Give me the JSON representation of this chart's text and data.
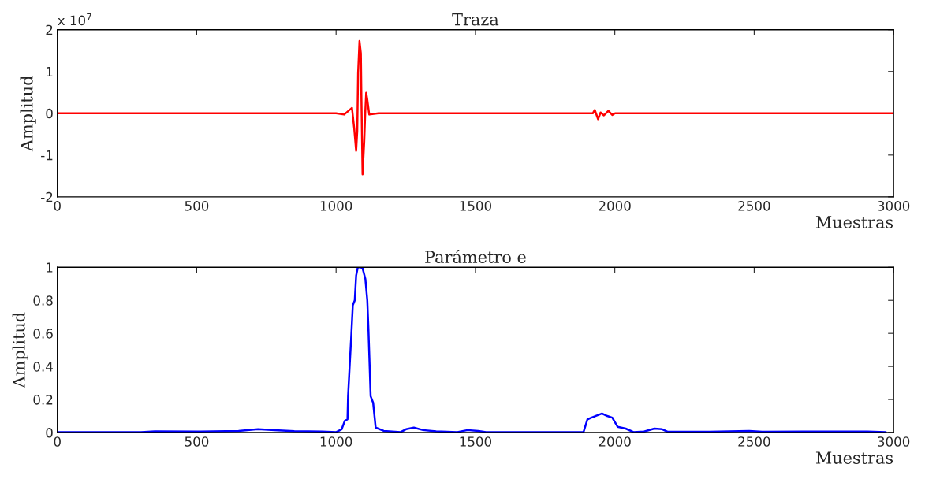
{
  "chart_data": [
    {
      "type": "line",
      "title": "Traza",
      "xlabel": "Muestras",
      "ylabel": "Amplitud",
      "annotations": [
        "x 10$^{7}$"
      ],
      "xlim": [
        0,
        3000
      ],
      "ylim": [
        -2,
        2
      ],
      "xticks": [
        0,
        500,
        1000,
        1500,
        2000,
        2500,
        3000
      ],
      "yticks": [
        -2,
        -1,
        0,
        1,
        2
      ],
      "series": [
        {
          "color": "#ff0000",
          "x": [
            0,
            500,
            1000,
            1029,
            1057,
            1065,
            1072,
            1076,
            1079,
            1084,
            1089,
            1091,
            1095,
            1101,
            1105,
            1108,
            1112,
            1119,
            1152,
            1500,
            1921,
            1928,
            1940,
            1949,
            1961,
            1977,
            1991,
            2001,
            2500,
            3000
          ],
          "values": [
            0,
            0,
            0,
            -0.03,
            0.13,
            -0.36,
            -0.9,
            -0.42,
            0.96,
            1.73,
            1.43,
            0.33,
            -1.46,
            -0.67,
            0.08,
            0.49,
            0.33,
            -0.03,
            0,
            0,
            0,
            0.08,
            -0.14,
            0.02,
            -0.05,
            0.06,
            -0.04,
            0,
            0,
            0
          ]
        }
      ]
    },
    {
      "type": "line",
      "title": "Parámetro e",
      "xlabel": "Muestras",
      "ylabel": "Amplitud",
      "xlim": [
        0,
        3000
      ],
      "ylim": [
        0,
        1
      ],
      "xticks": [
        0,
        500,
        1000,
        1500,
        2000,
        2500,
        3000
      ],
      "yticks": [
        0,
        0.2,
        0.4,
        0.6,
        0.8,
        1
      ],
      "series": [
        {
          "color": "#0000ff",
          "x": [
            0,
            300,
            350,
            500,
            650,
            720,
            780,
            850,
            950,
            1001,
            1020,
            1031,
            1041,
            1043,
            1048,
            1055,
            1060,
            1067,
            1072,
            1078,
            1088,
            1095,
            1105,
            1112,
            1116,
            1124,
            1133,
            1142,
            1171,
            1232,
            1251,
            1279,
            1312,
            1359,
            1435,
            1472,
            1510,
            1538,
            1888,
            1902,
            1916,
            1954,
            1973,
            1991,
            2010,
            2039,
            2067,
            2105,
            2142,
            2170,
            2189,
            2340,
            2482,
            2529,
            2719,
            2906,
            2972
          ],
          "values": [
            0.003,
            0.003,
            0.007,
            0.006,
            0.01,
            0.02,
            0.015,
            0.008,
            0.006,
            0.003,
            0.02,
            0.07,
            0.08,
            0.22,
            0.38,
            0.6,
            0.77,
            0.8,
            0.95,
            1.0,
            1.0,
            0.995,
            0.93,
            0.8,
            0.63,
            0.22,
            0.18,
            0.03,
            0.01,
            0.003,
            0.02,
            0.03,
            0.015,
            0.007,
            0.003,
            0.015,
            0.01,
            0.003,
            0.004,
            0.08,
            0.09,
            0.115,
            0.1,
            0.09,
            0.035,
            0.024,
            0.003,
            0.006,
            0.024,
            0.02,
            0.005,
            0.005,
            0.01,
            0.005,
            0.006,
            0.006,
            0.003
          ]
        }
      ]
    }
  ]
}
